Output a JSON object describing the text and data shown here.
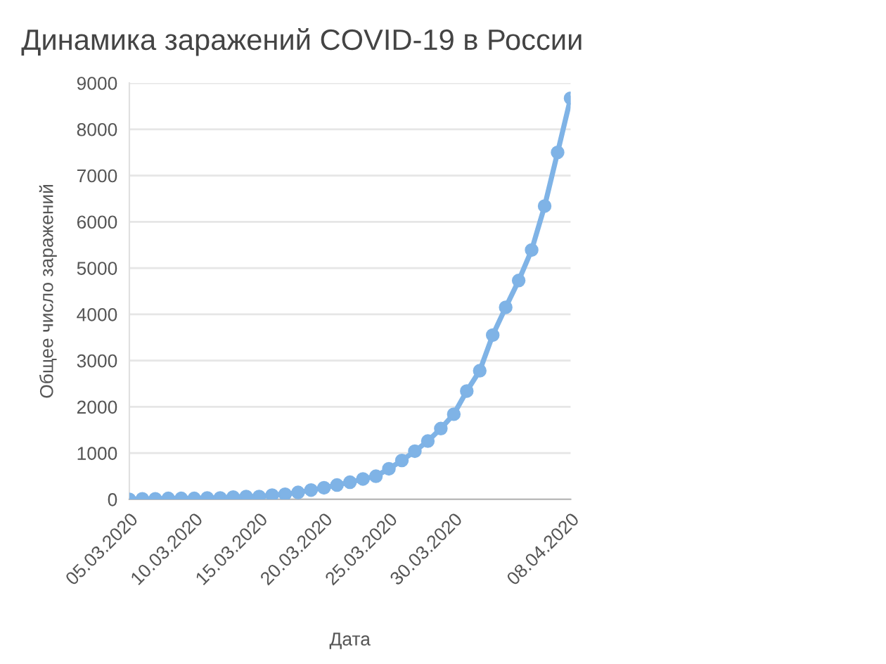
{
  "chart_data": {
    "type": "line",
    "title": "Динамика заражений COVID-19 в России",
    "xlabel": "Дата",
    "ylabel": "Общее число заражений",
    "x": [
      "2020-03-05",
      "2020-03-06",
      "2020-03-07",
      "2020-03-08",
      "2020-03-09",
      "2020-03-10",
      "2020-03-11",
      "2020-03-12",
      "2020-03-13",
      "2020-03-14",
      "2020-03-15",
      "2020-03-16",
      "2020-03-17",
      "2020-03-18",
      "2020-03-19",
      "2020-03-20",
      "2020-03-21",
      "2020-03-22",
      "2020-03-23",
      "2020-03-24",
      "2020-03-25",
      "2020-03-26",
      "2020-03-27",
      "2020-03-28",
      "2020-03-29",
      "2020-03-30",
      "2020-03-31",
      "2020-04-01",
      "2020-04-02",
      "2020-04-03",
      "2020-04-04",
      "2020-04-05",
      "2020-04-06",
      "2020-04-07",
      "2020-04-08"
    ],
    "series": [
      {
        "color": "#7fb3e6",
        "values": [
          0,
          10,
          10,
          20,
          20,
          20,
          30,
          30,
          50,
          60,
          60,
          90,
          110,
          150,
          200,
          250,
          310,
          370,
          440,
          500,
          660,
          840,
          1040,
          1260,
          1530,
          1840,
          2340,
          2780,
          3550,
          4150,
          4730,
          5390,
          6340,
          7500,
          8670
        ]
      }
    ],
    "xlim": [
      "2020-03-05",
      "2020-04-08"
    ],
    "xticks": [
      {
        "value": "2020-03-05",
        "label": "05.03.2020"
      },
      {
        "value": "2020-03-10",
        "label": "10.03.2020"
      },
      {
        "value": "2020-03-15",
        "label": "15.03.2020"
      },
      {
        "value": "2020-03-20",
        "label": "20.03.2020"
      },
      {
        "value": "2020-03-25",
        "label": "25.03.2020"
      },
      {
        "value": "2020-03-30",
        "label": "30.03.2020"
      },
      {
        "value": "2020-04-08",
        "label": "08.04.2020"
      }
    ],
    "ylim": [
      0,
      9000
    ],
    "yticks": [
      0,
      1000,
      2000,
      3000,
      4000,
      5000,
      6000,
      7000,
      8000,
      9000
    ],
    "grid": "y",
    "marker": "circle",
    "line_style": "solid"
  }
}
